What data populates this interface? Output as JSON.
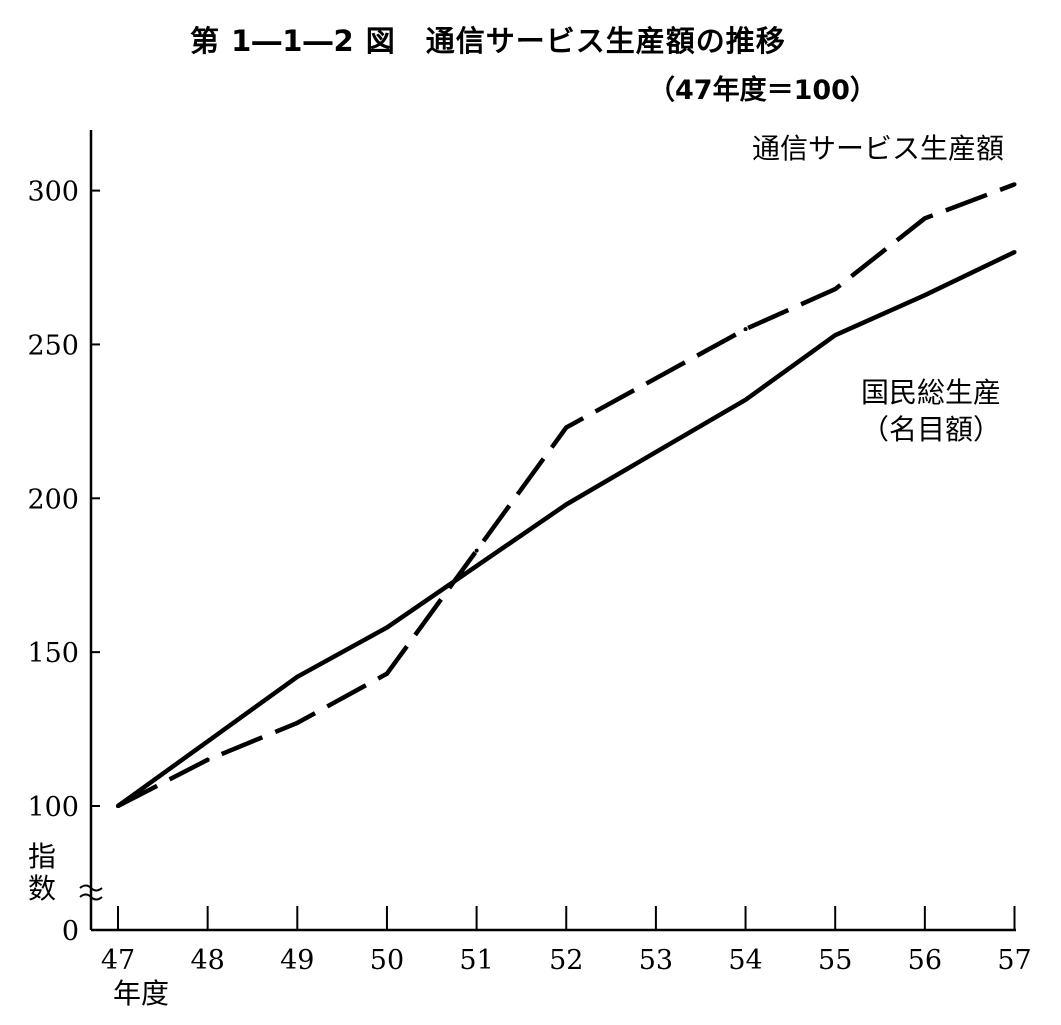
{
  "header": {
    "title": "第 1―1―2 図　通信サービス生産額の推移",
    "subtitle": "（47年度＝100）"
  },
  "chart_data": {
    "type": "line",
    "x": [
      "47",
      "48",
      "49",
      "50",
      "51",
      "52",
      "53",
      "54",
      "55",
      "56",
      "57"
    ],
    "x_unit_label": "年度",
    "ylabel": [
      "指",
      "数"
    ],
    "yticks": [
      0,
      100,
      150,
      200,
      250,
      300
    ],
    "ylim": [
      0,
      320
    ],
    "y_axis_break": true,
    "series": [
      {
        "name": "通信サービス生産額",
        "style": "dashed",
        "values": [
          100,
          115,
          127,
          143,
          183,
          223,
          239,
          255,
          268,
          291,
          302
        ]
      },
      {
        "name_lines": [
          "国民総生産",
          "（名目額）"
        ],
        "style": "solid",
        "values": [
          100,
          121,
          142,
          158,
          178,
          198,
          215,
          232,
          253,
          266,
          280
        ]
      }
    ],
    "line_color": "#000000",
    "grid": false
  }
}
